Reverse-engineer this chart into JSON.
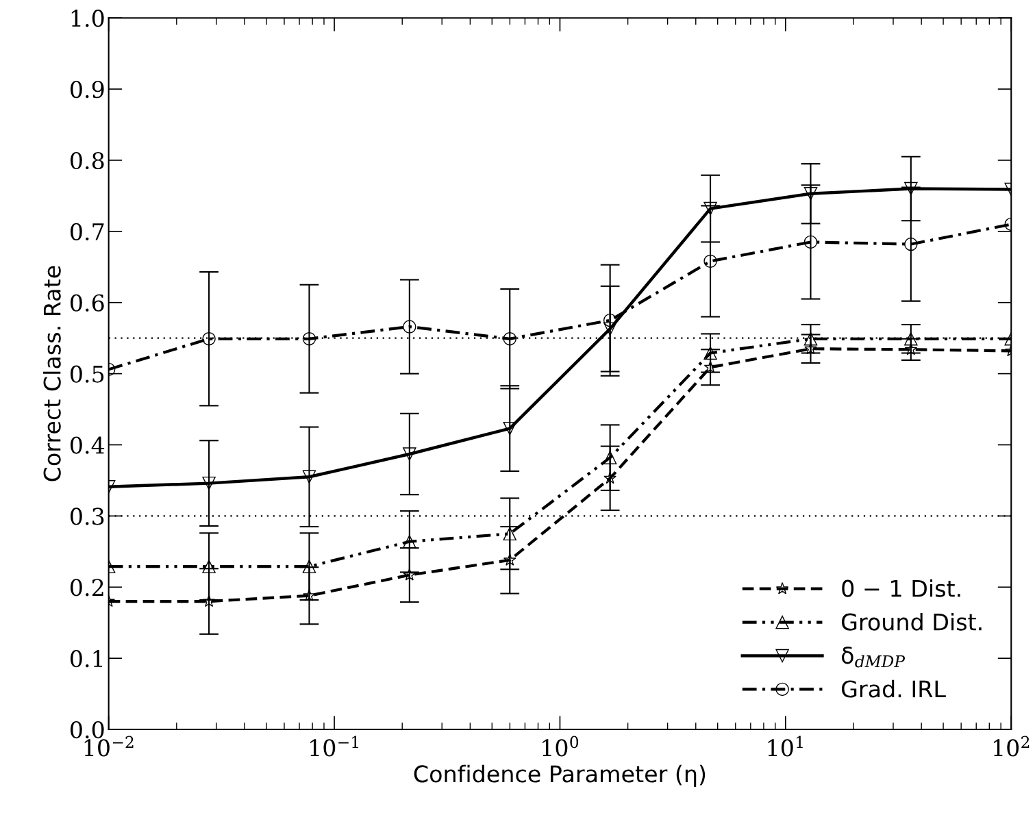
{
  "chart_data": {
    "type": "line",
    "xlabel": "Confidence Parameter (η)",
    "ylabel": "Correct Class. Rate",
    "log": "x",
    "x": [
      0.01,
      0.02783,
      0.07743,
      0.2154,
      0.5995,
      1.668,
      4.642,
      12.92,
      35.94,
      100
    ],
    "xlim": [
      0.01,
      100
    ],
    "xticks": [
      {
        "value": 0.01,
        "label": "10$^{−2}$"
      },
      {
        "value": 0.1,
        "label": "10$^{−1}$"
      },
      {
        "value": 1,
        "label": "10$^{0}$"
      },
      {
        "value": 10,
        "label": "10$^{1}$"
      },
      {
        "value": 100,
        "label": "10$^{2}$"
      }
    ],
    "ylim": [
      0,
      1
    ],
    "yticks": [
      {
        "value": 0,
        "label": "0.0"
      },
      0.1,
      0.2,
      0.3,
      0.4,
      0.5,
      0.6,
      0.7,
      0.8,
      0.9,
      {
        "value": 1,
        "label": "1.0"
      }
    ],
    "grid": false,
    "legend": "bottom right",
    "series": [
      {
        "name": "0 − 1 Dist.",
        "color": "#000000",
        "marker": "star",
        "line_style": "dashed",
        "values": [
          0.18,
          0.18,
          0.188,
          0.217,
          0.238,
          0.353,
          0.509,
          0.535,
          0.534,
          0.532
        ],
        "errors": [
          null,
          0.046,
          0.04,
          0.038,
          0.047,
          0.045,
          0.025,
          0.02,
          0.015,
          null
        ]
      },
      {
        "name": "Ground Dist.",
        "color": "#000000",
        "marker": "triangle",
        "line_style": "dashdotdot",
        "values": [
          0.229,
          0.229,
          0.229,
          0.264,
          0.275,
          0.382,
          0.529,
          0.549,
          0.549,
          0.549
        ],
        "errors": [
          null,
          0.047,
          0.047,
          0.043,
          0.05,
          0.046,
          0.027,
          0.02,
          0.02,
          null
        ]
      },
      {
        "name": "δ$_{dMDP}$",
        "color": "#000000",
        "marker": "triangle_down",
        "line_style": "solid",
        "values": [
          0.341,
          0.346,
          0.355,
          0.387,
          0.423,
          0.563,
          0.732,
          0.753,
          0.76,
          0.759
        ],
        "errors": [
          null,
          0.06,
          0.07,
          0.057,
          0.06,
          0.06,
          0.047,
          0.042,
          0.045,
          null
        ]
      },
      {
        "name": "Grad. IRL",
        "color": "#000000",
        "marker": "circle",
        "line_style": "dashdot",
        "values": [
          0.506,
          0.549,
          0.549,
          0.566,
          0.549,
          0.575,
          0.658,
          0.685,
          0.682,
          0.71
        ],
        "errors": [
          null,
          0.094,
          0.076,
          0.066,
          0.07,
          0.078,
          0.078,
          0.08,
          0.08,
          null
        ]
      }
    ],
    "ref_lines": [
      {
        "axis": "y",
        "value": 0.55,
        "label": null,
        "color": "#000000",
        "line_style": "dotted"
      },
      {
        "axis": "y",
        "value": 0.3,
        "label": null,
        "color": "#000000",
        "line_style": "dotted"
      }
    ]
  }
}
